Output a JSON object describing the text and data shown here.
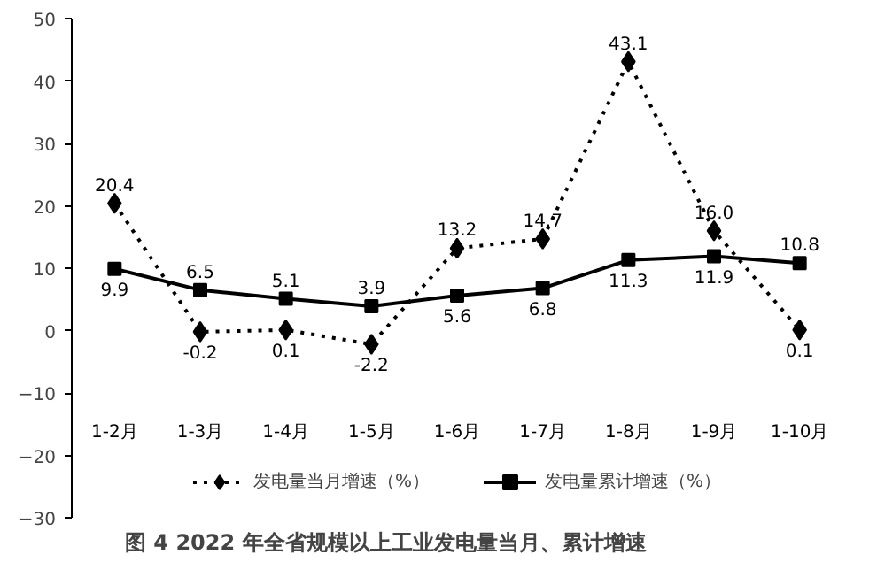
{
  "chart_data": {
    "type": "line",
    "title": "图 4   2022 年全省规模以上工业发电量当月、累计增速",
    "categories": [
      "1-2月",
      "1-3月",
      "1-4月",
      "1-5月",
      "1-6月",
      "1-7月",
      "1-8月",
      "1-9月",
      "1-10月"
    ],
    "series": [
      {
        "name": "发电量当月增速（%）",
        "color": "#000000",
        "marker": "diamond",
        "line_style": "dotted",
        "values": [
          20.4,
          -0.2,
          0.1,
          -2.2,
          13.2,
          14.7,
          43.1,
          16.0,
          0.1
        ],
        "value_labels": [
          "20.4",
          "-0.2",
          "0.1",
          "-2.2",
          "13.2",
          "14.7",
          "43.1",
          "16.0",
          "0.1"
        ]
      },
      {
        "name": "发电量累计增速（%）",
        "color": "#000000",
        "marker": "square",
        "line_style": "solid",
        "values": [
          9.9,
          6.5,
          5.1,
          3.9,
          5.6,
          6.8,
          11.3,
          11.9,
          10.8
        ],
        "value_labels": [
          "9.9",
          "6.5",
          "5.1",
          "3.9",
          "5.6",
          "6.8",
          "11.3",
          "11.9",
          "10.8"
        ]
      }
    ],
    "ylim": [
      -30,
      50
    ],
    "yticks": [
      -30,
      -20,
      -10,
      0,
      10,
      20,
      30,
      40,
      50
    ],
    "grid": false,
    "legend": "bottom"
  }
}
